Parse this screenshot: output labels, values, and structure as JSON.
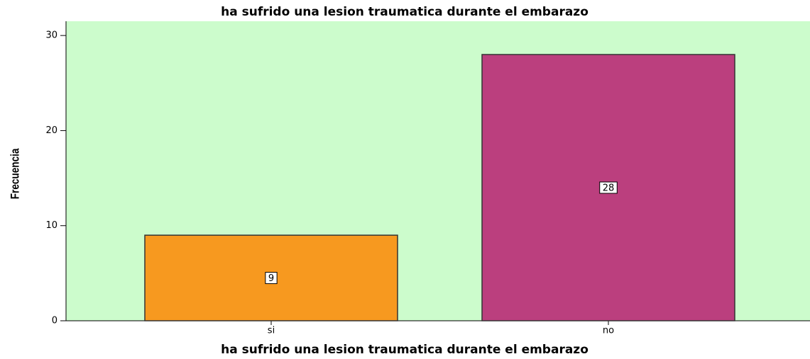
{
  "chart_data": {
    "type": "bar",
    "title": "ha sufrido una lesion traumatica durante el embarazo",
    "x_label": "ha sufrido una lesion traumatica durante el embarazo",
    "y_label": "Frecuencia",
    "categories": [
      "si",
      "no"
    ],
    "values": [
      9,
      28
    ],
    "colors": [
      "#f7991f",
      "#bb3f7e"
    ],
    "background": "#ccfccc",
    "ylim": [
      0,
      31.5
    ],
    "yticks": [
      0,
      10,
      20,
      30
    ],
    "grid": false
  }
}
